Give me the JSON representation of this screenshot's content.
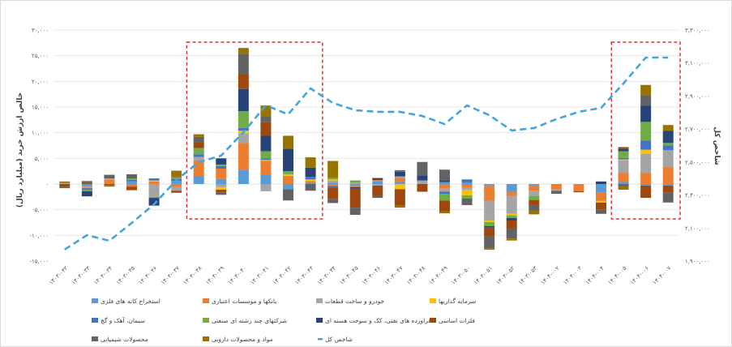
{
  "chart_data": {
    "type": "bar",
    "subtype": "stacked-bar-with-line",
    "title": "",
    "ylabel": "خالص ارزش خرید (میلیارد ریال)",
    "y2label": "شاخص کل",
    "ylim": [
      -15000,
      30000
    ],
    "y2lim": [
      1900000,
      3300000
    ],
    "grid": true,
    "legend_position": "bottom",
    "yticks": [
      "۳۰,۰۰۰",
      "۲۵,۰۰۰",
      "۲۰,۰۰۰",
      "۱۵,۰۰۰",
      "۱۰,۰۰۰",
      "۵,۰۰۰",
      "۰",
      "-۵,۰۰۰",
      "-۱۰,۰۰۰",
      "-۱۵,۰۰۰"
    ],
    "ytick_values": [
      30000,
      25000,
      20000,
      15000,
      10000,
      5000,
      0,
      -5000,
      -10000,
      -15000
    ],
    "y2ticks": [
      "۳,۳۰۰,۰۰۰",
      "۳,۱۰۰,۰۰۰",
      "۲,۹۰۰,۰۰۰",
      "۲,۷۰۰,۰۰۰",
      "۲,۵۰۰,۰۰۰",
      "۲,۳۰۰,۰۰۰",
      "۲,۱۰۰,۰۰۰",
      "۱,۹۰۰,۰۰۰"
    ],
    "y2tick_values": [
      3300000,
      3100000,
      2900000,
      2700000,
      2500000,
      2300000,
      2100000,
      1900000
    ],
    "categories": [
      "۱۴۰۳-۰۳۲",
      "۱۴۰۳-۰۳۳",
      "۱۴۰۳-۰۳۴",
      "۱۴۰۳-۰۳۵",
      "۱۴۰۳-۰۳۶",
      "۱۴۰۳-۰۳۷",
      "۱۴۰۳-۰۳۸",
      "۱۴۰۳-۰۳۹",
      "۱۴۰۳-۰۴۰",
      "۱۴۰۳-۰۴۱",
      "۱۴۰۳-۰۴۲",
      "۱۴۰۳-۰۴۳",
      "۱۴۰۳-۰۴۴",
      "۱۴۰۳-۰۴۵",
      "۱۴۰۳-۰۴۶",
      "۱۴۰۳-۰۴۷",
      "۱۴۰۳-۰۴۸",
      "۱۴۰۳-۰۴۹",
      "۱۴۰۳-۰۵۰",
      "۱۴۰۳-۰۵۱",
      "۱۴۰۳-۰۵۲",
      "۱۴۰۳-۰۵۳",
      "۱۴۰۴-۰۰۲",
      "۱۴۰۴-۰۰۳",
      "۱۴۰۴-۰۰۴",
      "۱۴۰۴-۰۰۵",
      "۱۴۰۴-۰۰۶",
      "۱۴۰۴-۰۰۷"
    ],
    "series": [
      {
        "name": "استخراج کانه های فلزی",
        "color": "#5B9BD5",
        "values": [
          0,
          -400,
          0,
          500,
          0,
          600,
          1500,
          1000,
          2700,
          1800,
          -1000,
          300,
          300,
          -300,
          500,
          400,
          0,
          400,
          300,
          -300,
          -1500,
          -300,
          0,
          0,
          -1700,
          400,
          -300,
          -300
        ]
      },
      {
        "name": "بانکها و موسسات اعتباری",
        "color": "#ED7D31",
        "values": [
          0,
          -200,
          800,
          -500,
          500,
          -600,
          3000,
          2000,
          5300,
          2700,
          1600,
          300,
          -400,
          -300,
          300,
          800,
          0,
          -900,
          -700,
          -3000,
          -800,
          -1000,
          -1000,
          -1400,
          -1600,
          1800,
          2200,
          3300
        ]
      },
      {
        "name": "خودرو و ساخت قطعات",
        "color": "#A5A5A5",
        "values": [
          200,
          -200,
          300,
          0,
          -2500,
          -700,
          800,
          -600,
          1900,
          -1400,
          0,
          0,
          400,
          300,
          -300,
          300,
          700,
          -600,
          -500,
          -3800,
          -3500,
          -1000,
          -300,
          0,
          0,
          2400,
          3700,
          3300
        ]
      },
      {
        "name": "سرمایه گذاریها",
        "color": "#FFC000",
        "values": [
          0,
          0,
          0,
          0,
          200,
          0,
          0,
          -500,
          500,
          200,
          300,
          300,
          200,
          0,
          0,
          -1000,
          0,
          0,
          -1000,
          -300,
          -300,
          0,
          0,
          0,
          -300,
          200,
          800,
          0
        ]
      },
      {
        "name": "سیمان، آهک و گچ",
        "color": "#4472C4",
        "values": [
          0,
          -300,
          0,
          300,
          400,
          400,
          500,
          500,
          500,
          300,
          0,
          500,
          -300,
          0,
          0,
          0,
          0,
          -400,
          600,
          0,
          0,
          0,
          0,
          0,
          0,
          300,
          1800,
          900
        ]
      },
      {
        "name": "شرکتهای چند رشته ای صنعتی",
        "color": "#70AD47",
        "values": [
          0,
          -300,
          0,
          300,
          -200,
          300,
          1200,
          300,
          3300,
          1400,
          600,
          0,
          300,
          400,
          0,
          0,
          0,
          -1300,
          -600,
          -800,
          -500,
          -800,
          0,
          0,
          0,
          1300,
          3600,
          500
        ]
      },
      {
        "name": "فراورده های نفتی، کک و سوخت هسته ای",
        "color": "#264478",
        "values": [
          0,
          -1000,
          0,
          0,
          -1500,
          0,
          0,
          1200,
          4300,
          3000,
          4400,
          1800,
          0,
          -300,
          300,
          900,
          1000,
          300,
          0,
          -300,
          -500,
          0,
          0,
          0,
          500,
          400,
          3200,
          2400
        ]
      },
      {
        "name": "فلزات اساسی",
        "color": "#9E480E",
        "values": [
          -600,
          0,
          -200,
          -700,
          0,
          -400,
          1200,
          -600,
          2900,
          2700,
          0,
          0,
          -2200,
          -3700,
          -2000,
          -3200,
          -1500,
          -2100,
          0,
          -1600,
          -1500,
          -1000,
          0,
          -200,
          -1400,
          400,
          -2400,
          -1300
        ]
      },
      {
        "name": "محصولات شیمیایی",
        "color": "#636363",
        "values": [
          -200,
          400,
          700,
          800,
          0,
          0,
          1000,
          -400,
          4000,
          1000,
          -2200,
          -1300,
          -800,
          -1400,
          -400,
          300,
          2600,
          2100,
          -1300,
          -2400,
          -2000,
          -1100,
          -600,
          0,
          -800,
          -400,
          2000,
          -2000
        ]
      },
      {
        "name": "مواد و محصولات دارویی",
        "color": "#997300",
        "values": [
          300,
          200,
          -300,
          0,
          0,
          1300,
          500,
          0,
          1100,
          2200,
          2500,
          2000,
          3300,
          0,
          100,
          -400,
          0,
          -400,
          0,
          -300,
          -400,
          -700,
          0,
          0,
          0,
          -700,
          2000,
          1100
        ]
      }
    ],
    "line": {
      "name": "شاخص کل",
      "color": "#41A6DC",
      "axis": "right",
      "values": [
        1970000,
        2057000,
        2023000,
        2131000,
        2244000,
        2391000,
        2499000,
        2539000,
        2681000,
        2843000,
        2789000,
        2946000,
        2858000,
        2814000,
        2804000,
        2804000,
        2779000,
        2730000,
        2843000,
        2784000,
        2691000,
        2706000,
        2760000,
        2804000,
        2828000,
        2976000,
        3133000,
        3133000
      ]
    },
    "annotations": [
      {
        "type": "dashed-box",
        "color": "#E0302F",
        "from_category": "۱۴۰۳-۰۳۸",
        "to_category": "۱۴۰۳-۰۴۳"
      },
      {
        "type": "dashed-box",
        "color": "#E0302F",
        "from_category": "۱۴۰۴-۰۰۵",
        "to_category": "۱۴۰۴-۰۰۷"
      }
    ]
  }
}
